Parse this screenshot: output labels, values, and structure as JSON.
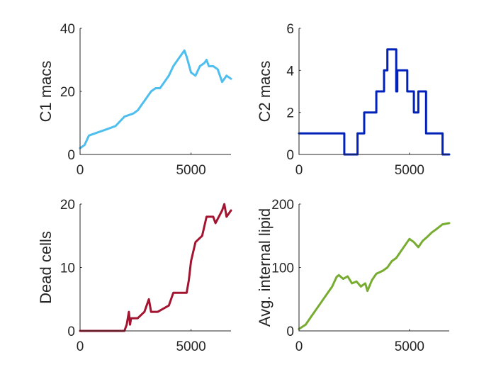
{
  "chart_data": [
    {
      "type": "line",
      "ylabel": "C1 macs",
      "xlim": [
        0,
        6800
      ],
      "ylim": [
        0,
        40
      ],
      "xticks": [
        0,
        5000
      ],
      "yticks": [
        0,
        20,
        40
      ],
      "color": "#4DBEEE",
      "x": [
        0,
        200,
        400,
        800,
        1200,
        1600,
        2000,
        2400,
        2600,
        2800,
        3000,
        3200,
        3400,
        3600,
        3800,
        4000,
        4200,
        4400,
        4600,
        4700,
        4800,
        5000,
        5200,
        5400,
        5600,
        5700,
        5800,
        6000,
        6200,
        6400,
        6600,
        6800
      ],
      "values": [
        2,
        3,
        6,
        7,
        8,
        9,
        12,
        13,
        14,
        16,
        18,
        20,
        21,
        21,
        23,
        25,
        28,
        30,
        32,
        33,
        31,
        26,
        25,
        28,
        29,
        30,
        28,
        28,
        27,
        23,
        25,
        24
      ]
    },
    {
      "type": "line",
      "ylabel": "C2 macs",
      "xlim": [
        0,
        6800
      ],
      "ylim": [
        0,
        6
      ],
      "xticks": [
        0,
        5000
      ],
      "yticks": [
        0,
        2,
        4,
        6
      ],
      "color": "#0022BB",
      "x": [
        0,
        2050,
        2050,
        2650,
        2650,
        2950,
        2950,
        3500,
        3500,
        3850,
        3850,
        4000,
        4000,
        4400,
        4400,
        4450,
        4450,
        4500,
        4500,
        4900,
        4900,
        5200,
        5200,
        5400,
        5400,
        5750,
        5750,
        6500,
        6500,
        6800
      ],
      "values": [
        1,
        1,
        0,
        0,
        1,
        1,
        2,
        2,
        3,
        3,
        4,
        4,
        5,
        5,
        3,
        3,
        4,
        4,
        4,
        4,
        3,
        3,
        2,
        2,
        3,
        3,
        1,
        1,
        0,
        0
      ]
    },
    {
      "type": "line",
      "ylabel": "Dead cells",
      "xlim": [
        0,
        6800
      ],
      "ylim": [
        0,
        20
      ],
      "xticks": [
        0,
        5000
      ],
      "yticks": [
        0,
        10,
        20
      ],
      "color": "#A2142F",
      "x": [
        0,
        2000,
        2100,
        2200,
        2250,
        2300,
        2600,
        2900,
        3100,
        3150,
        3200,
        3500,
        4000,
        4200,
        4800,
        4900,
        5000,
        5200,
        5500,
        5700,
        6000,
        6100,
        6400,
        6500,
        6600,
        6800
      ],
      "values": [
        0,
        0,
        1,
        3,
        1,
        2,
        2,
        3,
        5,
        4,
        3,
        3,
        4,
        6,
        6,
        8,
        11,
        14,
        15,
        18,
        18,
        17,
        19,
        20,
        18,
        19
      ]
    },
    {
      "type": "line",
      "ylabel": "Avg. internal lipid",
      "xlim": [
        0,
        6800
      ],
      "ylim": [
        0,
        200
      ],
      "xticks": [
        0,
        5000
      ],
      "yticks": [
        0,
        100,
        200
      ],
      "color": "#77AC30",
      "x": [
        0,
        300,
        600,
        900,
        1200,
        1500,
        1700,
        1800,
        2000,
        2200,
        2400,
        2600,
        2800,
        3000,
        3100,
        3300,
        3500,
        3800,
        4000,
        4200,
        4400,
        4600,
        4800,
        5000,
        5200,
        5400,
        5600,
        5800,
        6000,
        6200,
        6500,
        6800
      ],
      "values": [
        3,
        10,
        25,
        40,
        55,
        70,
        85,
        88,
        82,
        86,
        75,
        78,
        70,
        75,
        63,
        80,
        90,
        95,
        100,
        110,
        115,
        125,
        135,
        145,
        140,
        132,
        142,
        148,
        155,
        160,
        168,
        170
      ]
    }
  ]
}
